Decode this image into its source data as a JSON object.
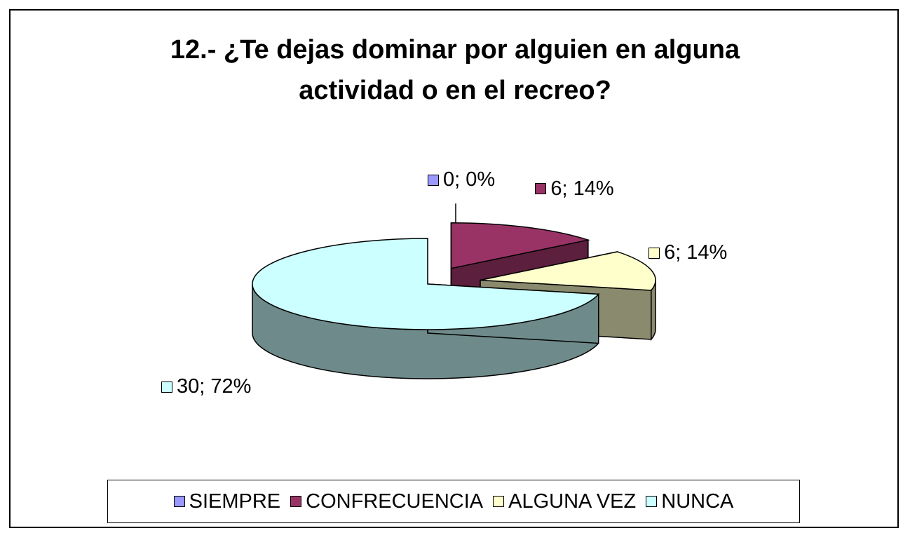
{
  "chart_data": {
    "type": "pie",
    "style": "3d-exploded",
    "title": "12.- ¿Te dejas dominar por alguien en alguna actividad o en el recreo?",
    "title_lines": [
      "12.- ¿Te dejas dominar por alguien en alguna",
      "actividad o en el recreo?"
    ],
    "slices": [
      {
        "name": "SIEMPRE",
        "value": 0,
        "percent": 0,
        "label": "0; 0%",
        "color": "#9999ff"
      },
      {
        "name": "CONFRECUENCIA",
        "value": 6,
        "percent": 14,
        "label": "6; 14%",
        "color": "#993366"
      },
      {
        "name": "ALGUNA VEZ",
        "value": 6,
        "percent": 14,
        "label": "6; 14%",
        "color": "#ffffcc"
      },
      {
        "name": "NUNCA",
        "value": 30,
        "percent": 72,
        "label": "30; 72%",
        "color": "#ccffff"
      }
    ],
    "legend_position": "bottom"
  }
}
